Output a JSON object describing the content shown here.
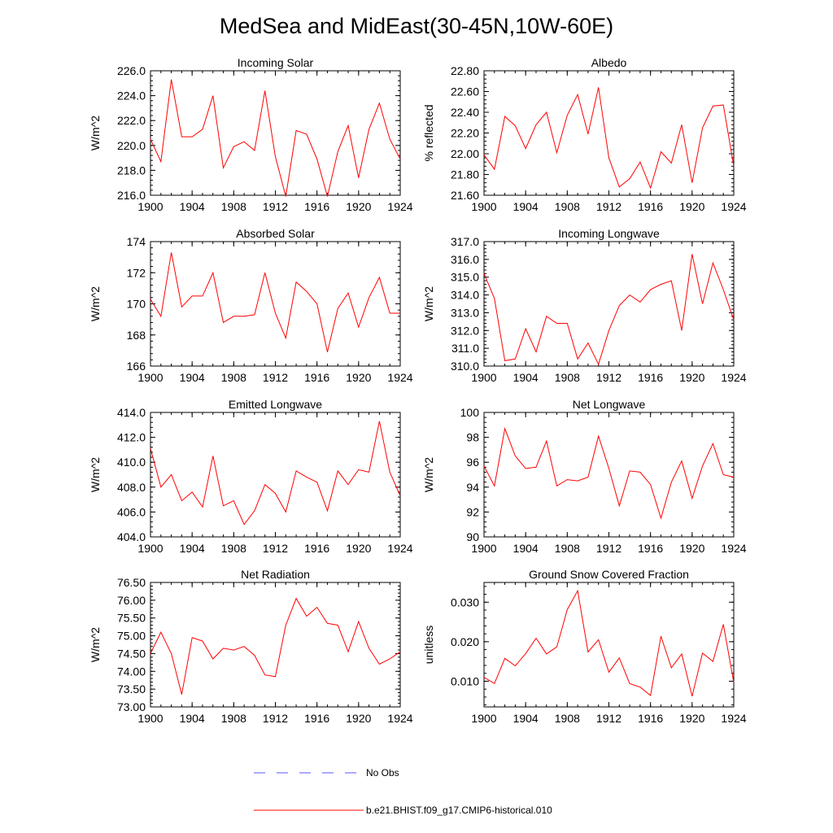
{
  "figure": {
    "title": "MedSea and MidEast(30-45N,10W-60E)",
    "line_color": "#ff0000",
    "obs_color": "#5555ff"
  },
  "legend": {
    "obs_label": "No Obs",
    "model_label": "b.e21.BHIST.f09_g17.CMIP6-historical.010"
  },
  "chart_data": [
    {
      "type": "line",
      "title": "Incoming Solar",
      "ylabel": "W/m^2",
      "xlim": [
        1900,
        1924
      ],
      "ylim": [
        216.0,
        226.0
      ],
      "xticks": [
        1900,
        1904,
        1908,
        1912,
        1916,
        1920,
        1924
      ],
      "yticks": [
        216.0,
        218.0,
        220.0,
        222.0,
        224.0,
        226.0
      ],
      "ydecimals": 1,
      "x": [
        1900,
        1901,
        1902,
        1903,
        1904,
        1905,
        1906,
        1907,
        1908,
        1909,
        1910,
        1911,
        1912,
        1913,
        1914,
        1915,
        1916,
        1917,
        1918,
        1919,
        1920,
        1921,
        1922,
        1923,
        1924
      ],
      "values": [
        220.5,
        218.7,
        225.3,
        220.7,
        220.7,
        221.3,
        224.0,
        218.2,
        219.9,
        220.3,
        219.6,
        224.4,
        219.1,
        215.9,
        221.2,
        220.9,
        218.9,
        215.9,
        219.5,
        221.6,
        217.4,
        221.3,
        223.4,
        220.5,
        218.9
      ]
    },
    {
      "type": "line",
      "title": "Albedo",
      "ylabel": "% reflected",
      "xlim": [
        1900,
        1924
      ],
      "ylim": [
        21.6,
        22.8
      ],
      "xticks": [
        1900,
        1904,
        1908,
        1912,
        1916,
        1920,
        1924
      ],
      "yticks": [
        21.6,
        21.8,
        22.0,
        22.2,
        22.4,
        22.6,
        22.8
      ],
      "ydecimals": 2,
      "x": [
        1900,
        1901,
        1902,
        1903,
        1904,
        1905,
        1906,
        1907,
        1908,
        1909,
        1910,
        1911,
        1912,
        1913,
        1914,
        1915,
        1916,
        1917,
        1918,
        1919,
        1920,
        1921,
        1922,
        1923,
        1924
      ],
      "values": [
        21.99,
        21.85,
        22.36,
        22.27,
        22.05,
        22.28,
        22.4,
        22.01,
        22.37,
        22.57,
        22.19,
        22.64,
        21.96,
        21.68,
        21.76,
        21.92,
        21.67,
        22.02,
        21.91,
        22.28,
        21.72,
        22.25,
        22.46,
        22.47,
        21.88
      ]
    },
    {
      "type": "line",
      "title": "Absorbed Solar",
      "ylabel": "W/m^2",
      "xlim": [
        1900,
        1924
      ],
      "ylim": [
        166,
        174
      ],
      "xticks": [
        1900,
        1904,
        1908,
        1912,
        1916,
        1920,
        1924
      ],
      "yticks": [
        166,
        168,
        170,
        172,
        174
      ],
      "ydecimals": 0,
      "x": [
        1900,
        1901,
        1902,
        1903,
        1904,
        1905,
        1906,
        1907,
        1908,
        1909,
        1910,
        1911,
        1912,
        1913,
        1914,
        1915,
        1916,
        1917,
        1918,
        1919,
        1920,
        1921,
        1922,
        1923,
        1924
      ],
      "values": [
        170.3,
        169.2,
        173.3,
        169.8,
        170.5,
        170.5,
        172.0,
        168.8,
        169.2,
        169.2,
        169.3,
        172.0,
        169.4,
        167.8,
        171.4,
        170.8,
        170.0,
        166.9,
        169.7,
        170.7,
        168.5,
        170.4,
        171.7,
        169.4,
        169.4
      ]
    },
    {
      "type": "line",
      "title": "Incoming Longwave",
      "ylabel": "W/m^2",
      "xlim": [
        1900,
        1924
      ],
      "ylim": [
        310.0,
        317.0
      ],
      "xticks": [
        1900,
        1904,
        1908,
        1912,
        1916,
        1920,
        1924
      ],
      "yticks": [
        310.0,
        311.0,
        312.0,
        313.0,
        314.0,
        315.0,
        316.0,
        317.0
      ],
      "ydecimals": 1,
      "x": [
        1900,
        1901,
        1902,
        1903,
        1904,
        1905,
        1906,
        1907,
        1908,
        1909,
        1910,
        1911,
        1912,
        1913,
        1914,
        1915,
        1916,
        1917,
        1918,
        1919,
        1920,
        1921,
        1922,
        1923,
        1924
      ],
      "values": [
        315.2,
        313.8,
        310.3,
        310.4,
        312.1,
        310.8,
        312.8,
        312.4,
        312.4,
        310.4,
        311.3,
        310.1,
        312.0,
        313.4,
        314.0,
        313.6,
        314.3,
        314.6,
        314.8,
        312.0,
        316.3,
        313.5,
        315.8,
        314.3,
        312.6
      ]
    },
    {
      "type": "line",
      "title": "Emitted Longwave",
      "ylabel": "W/m^2",
      "xlim": [
        1900,
        1924
      ],
      "ylim": [
        404.0,
        414.0
      ],
      "xticks": [
        1900,
        1904,
        1908,
        1912,
        1916,
        1920,
        1924
      ],
      "yticks": [
        404.0,
        406.0,
        408.0,
        410.0,
        412.0,
        414.0
      ],
      "ydecimals": 1,
      "x": [
        1900,
        1901,
        1902,
        1903,
        1904,
        1905,
        1906,
        1907,
        1908,
        1909,
        1910,
        1911,
        1912,
        1913,
        1914,
        1915,
        1916,
        1917,
        1918,
        1919,
        1920,
        1921,
        1922,
        1923,
        1924
      ],
      "values": [
        411.1,
        408.0,
        409.0,
        406.9,
        407.6,
        406.4,
        410.5,
        406.5,
        406.9,
        405.0,
        406.1,
        408.2,
        407.5,
        406.0,
        409.3,
        408.8,
        408.4,
        406.1,
        409.3,
        408.2,
        409.4,
        409.2,
        413.3,
        409.2,
        407.3
      ]
    },
    {
      "type": "line",
      "title": "Net Longwave",
      "ylabel": "W/m^2",
      "xlim": [
        1900,
        1924
      ],
      "ylim": [
        90,
        100
      ],
      "xticks": [
        1900,
        1904,
        1908,
        1912,
        1916,
        1920,
        1924
      ],
      "yticks": [
        90,
        92,
        94,
        96,
        98,
        100
      ],
      "ydecimals": 0,
      "x": [
        1900,
        1901,
        1902,
        1903,
        1904,
        1905,
        1906,
        1907,
        1908,
        1909,
        1910,
        1911,
        1912,
        1913,
        1914,
        1915,
        1916,
        1917,
        1918,
        1919,
        1920,
        1921,
        1922,
        1923,
        1924
      ],
      "values": [
        95.7,
        94.1,
        98.7,
        96.5,
        95.5,
        95.6,
        97.7,
        94.1,
        94.6,
        94.5,
        94.8,
        98.1,
        95.5,
        92.5,
        95.3,
        95.2,
        94.2,
        91.5,
        94.4,
        96.1,
        93.1,
        95.7,
        97.5,
        95.0,
        94.8
      ]
    },
    {
      "type": "line",
      "title": "Net Radiation",
      "ylabel": "W/m^2",
      "xlim": [
        1900,
        1924
      ],
      "ylim": [
        73.0,
        76.5
      ],
      "xticks": [
        1900,
        1904,
        1908,
        1912,
        1916,
        1920,
        1924
      ],
      "yticks": [
        73.0,
        73.5,
        74.0,
        74.5,
        75.0,
        75.5,
        76.0,
        76.5
      ],
      "ydecimals": 2,
      "x": [
        1900,
        1901,
        1902,
        1903,
        1904,
        1905,
        1906,
        1907,
        1908,
        1909,
        1910,
        1911,
        1912,
        1913,
        1914,
        1915,
        1916,
        1917,
        1918,
        1919,
        1920,
        1921,
        1922,
        1923,
        1924
      ],
      "values": [
        74.5,
        75.1,
        74.5,
        73.35,
        74.95,
        74.85,
        74.35,
        74.65,
        74.6,
        74.7,
        74.45,
        73.9,
        73.85,
        75.3,
        76.05,
        75.55,
        75.8,
        75.35,
        75.3,
        74.55,
        75.4,
        74.65,
        74.2,
        74.35,
        74.55
      ]
    },
    {
      "type": "line",
      "title": "Ground Snow Covered Fraction",
      "ylabel": "unitless",
      "xlim": [
        1900,
        1924
      ],
      "ylim": [
        0.0035,
        0.035
      ],
      "xticks": [
        1900,
        1904,
        1908,
        1912,
        1916,
        1920,
        1924
      ],
      "yticks": [
        0.01,
        0.02,
        0.03
      ],
      "ydecimals": 3,
      "x": [
        1900,
        1901,
        1902,
        1903,
        1904,
        1905,
        1906,
        1907,
        1908,
        1909,
        1910,
        1911,
        1912,
        1913,
        1914,
        1915,
        1916,
        1917,
        1918,
        1919,
        1920,
        1921,
        1922,
        1923,
        1924
      ],
      "values": [
        0.011,
        0.0094,
        0.0158,
        0.0139,
        0.017,
        0.0209,
        0.0169,
        0.0187,
        0.0281,
        0.0329,
        0.0174,
        0.0205,
        0.0123,
        0.0159,
        0.0094,
        0.0085,
        0.0064,
        0.0214,
        0.0134,
        0.0169,
        0.0062,
        0.0171,
        0.015,
        0.0244,
        0.0097
      ]
    }
  ]
}
